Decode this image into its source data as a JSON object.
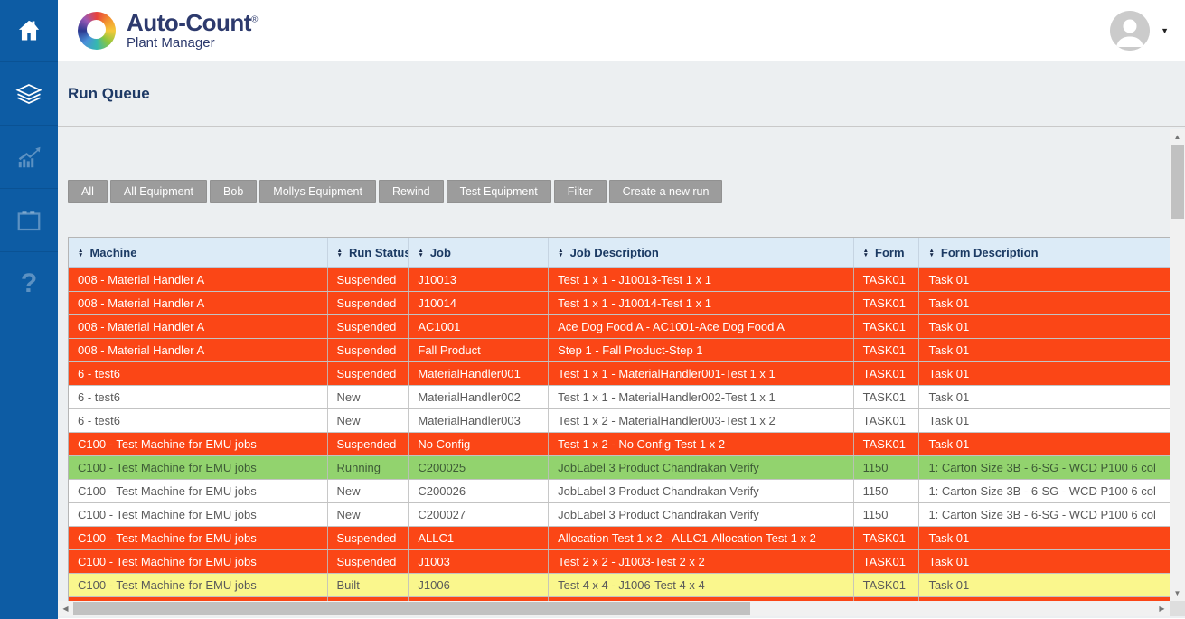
{
  "brand": {
    "title": "Auto-Count",
    "registered": "®",
    "subtitle": "Plant Manager"
  },
  "sidebar": {
    "items": [
      {
        "name": "home",
        "icon": "home-icon"
      },
      {
        "name": "queue",
        "icon": "layers-icon"
      },
      {
        "name": "reports",
        "icon": "chart-icon"
      },
      {
        "name": "schedule",
        "icon": "calendar-icon"
      },
      {
        "name": "help",
        "icon": "question-icon"
      }
    ]
  },
  "page": {
    "title": "Run Queue"
  },
  "toolbar": {
    "buttons": [
      "All",
      "All Equipment",
      "Bob",
      "Mollys Equipment",
      "Rewind",
      "Test Equipment",
      "Filter",
      "Create a new run"
    ]
  },
  "table": {
    "columns": [
      "Machine",
      "Run Status",
      "Job",
      "Job Description",
      "Form",
      "Form Description"
    ],
    "rows": [
      {
        "machine": "008 - Material Handler A",
        "run_status": "Suspended",
        "job": "J10013",
        "job_description": "Test 1 x 1 - J10013-Test 1 x 1",
        "form": "TASK01",
        "form_description": "Task 01",
        "state": "suspended"
      },
      {
        "machine": "008 - Material Handler A",
        "run_status": "Suspended",
        "job": "J10014",
        "job_description": "Test 1 x 1 - J10014-Test 1 x 1",
        "form": "TASK01",
        "form_description": "Task 01",
        "state": "suspended"
      },
      {
        "machine": "008 - Material Handler A",
        "run_status": "Suspended",
        "job": "AC1001",
        "job_description": "Ace Dog Food A - AC1001-Ace Dog Food A",
        "form": "TASK01",
        "form_description": "Task 01",
        "state": "suspended"
      },
      {
        "machine": "008 - Material Handler A",
        "run_status": "Suspended",
        "job": "Fall Product",
        "job_description": "Step 1 - Fall Product-Step 1",
        "form": "TASK01",
        "form_description": "Task 01",
        "state": "suspended"
      },
      {
        "machine": "6 - test6",
        "run_status": "Suspended",
        "job": "MaterialHandler001",
        "job_description": "Test 1 x 1 - MaterialHandler001-Test 1 x 1",
        "form": "TASK01",
        "form_description": "Task 01",
        "state": "suspended"
      },
      {
        "machine": "6 - test6",
        "run_status": "New",
        "job": "MaterialHandler002",
        "job_description": "Test 1 x 1 - MaterialHandler002-Test 1 x 1",
        "form": "TASK01",
        "form_description": "Task 01",
        "state": "new"
      },
      {
        "machine": "6 - test6",
        "run_status": "New",
        "job": "MaterialHandler003",
        "job_description": "Test 1 x 2 - MaterialHandler003-Test 1 x 2",
        "form": "TASK01",
        "form_description": "Task 01",
        "state": "new"
      },
      {
        "machine": "C100 - Test Machine for EMU jobs",
        "run_status": "Suspended",
        "job": "No Config",
        "job_description": "Test 1 x 2 - No Config-Test 1 x 2",
        "form": "TASK01",
        "form_description": "Task 01",
        "state": "suspended"
      },
      {
        "machine": "C100 - Test Machine for EMU jobs",
        "run_status": "Running",
        "job": "C200025",
        "job_description": "JobLabel 3 Product Chandrakan Verify",
        "form": "1150",
        "form_description": "1: Carton Size 3B - 6-SG - WCD P100 6 col",
        "state": "running"
      },
      {
        "machine": "C100 - Test Machine for EMU jobs",
        "run_status": "New",
        "job": "C200026",
        "job_description": "JobLabel 3 Product Chandrakan Verify",
        "form": "1150",
        "form_description": "1: Carton Size 3B - 6-SG - WCD P100 6 col",
        "state": "new"
      },
      {
        "machine": "C100 - Test Machine for EMU jobs",
        "run_status": "New",
        "job": "C200027",
        "job_description": "JobLabel 3 Product Chandrakan Verify",
        "form": "1150",
        "form_description": "1: Carton Size 3B - 6-SG - WCD P100 6 col",
        "state": "new"
      },
      {
        "machine": "C100 - Test Machine for EMU jobs",
        "run_status": "Suspended",
        "job": "ALLC1",
        "job_description": "Allocation Test 1 x 2 - ALLC1-Allocation Test 1 x 2",
        "form": "TASK01",
        "form_description": "Task 01",
        "state": "suspended"
      },
      {
        "machine": "C100 - Test Machine for EMU jobs",
        "run_status": "Suspended",
        "job": "J1003",
        "job_description": "Test 2 x 2 - J1003-Test 2 x 2",
        "form": "TASK01",
        "form_description": "Task 01",
        "state": "suspended"
      },
      {
        "machine": "C100 - Test Machine for EMU jobs",
        "run_status": "Built",
        "job": "J1006",
        "job_description": "Test 4 x 4 - J1006-Test 4 x 4",
        "form": "TASK01",
        "form_description": "Task 01",
        "state": "built"
      },
      {
        "machine": "",
        "run_status": "",
        "job": "",
        "job_description": "",
        "form": "",
        "form_description": "",
        "state": "suspended"
      }
    ]
  },
  "icons": {
    "sort_asc": "▲",
    "sort_desc": "▼",
    "caret_down": "▼",
    "help_glyph": "?",
    "scroll_up": "▲",
    "scroll_down": "▼",
    "scroll_left": "◀",
    "scroll_right": "▶"
  },
  "colors": {
    "sidebar_blue": "#0d5ca4",
    "brand_navy": "#2d3a6d",
    "header_navy": "#1b3a63",
    "table_header_bg": "#dcebf7",
    "row_suspended": "#fb4616",
    "row_running": "#92d36e",
    "row_built": "#faf78d",
    "button_gray": "#9c9c9c",
    "content_bg": "#eceff1"
  }
}
